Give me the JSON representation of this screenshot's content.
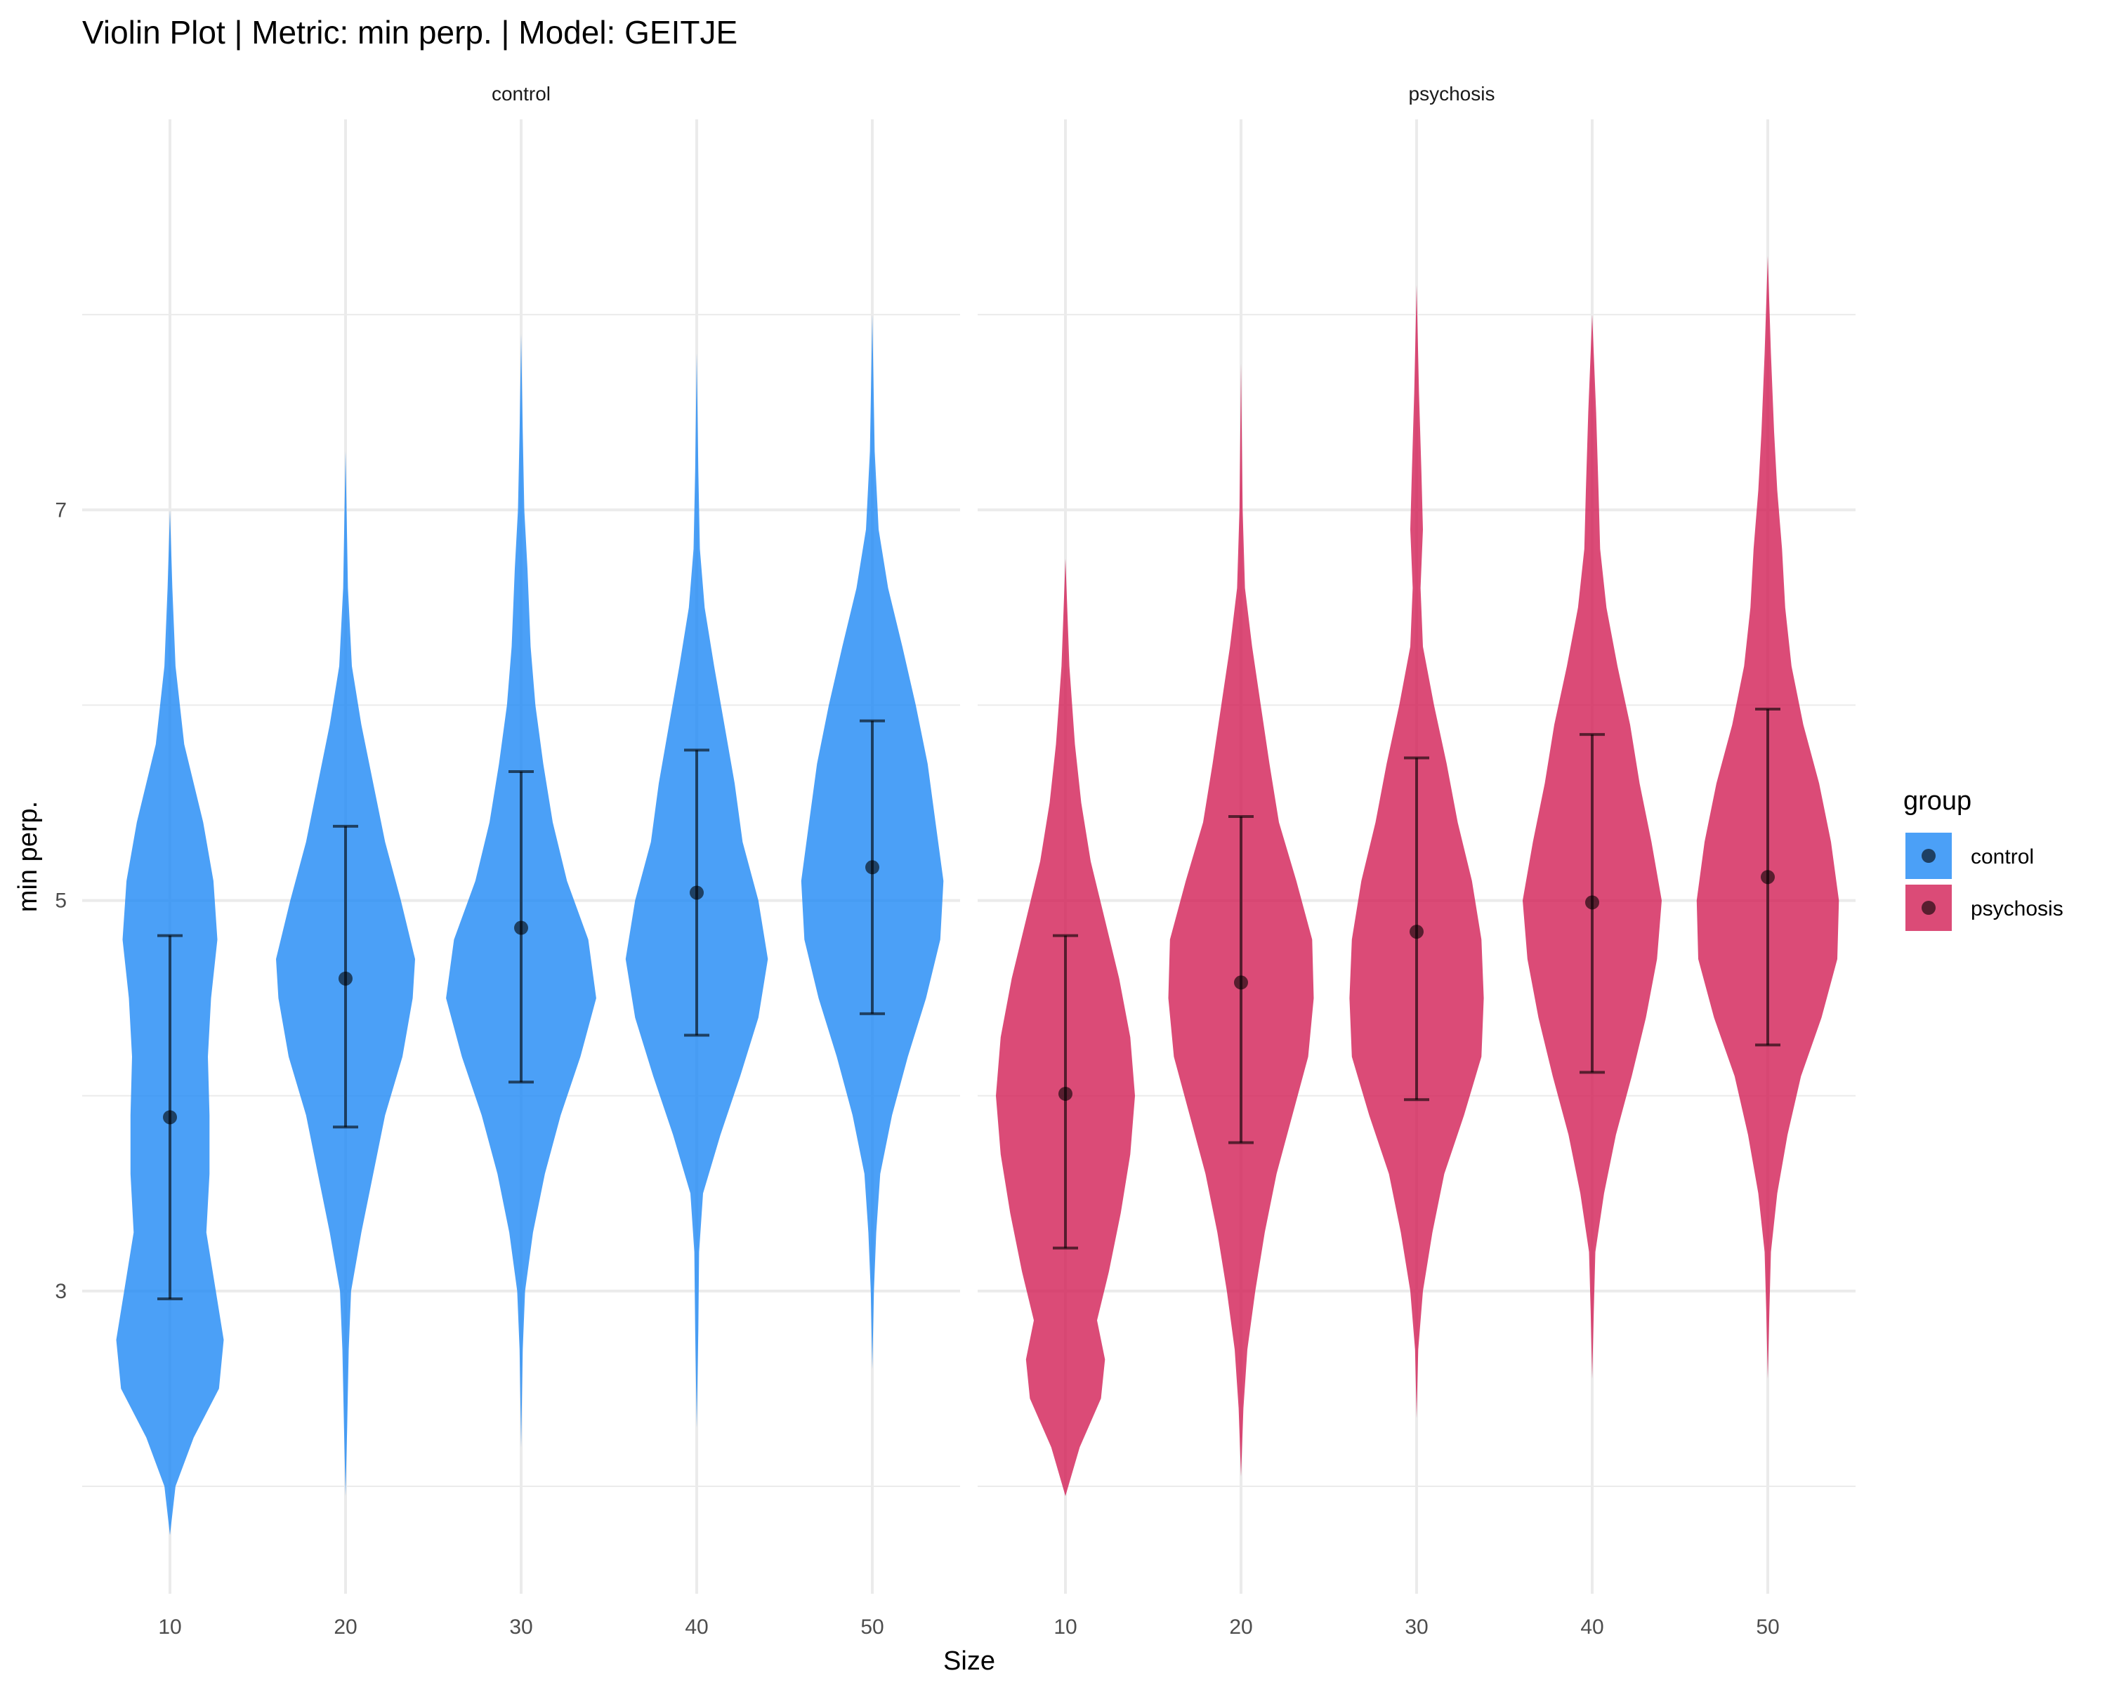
{
  "chart_data": {
    "type": "violin",
    "title": "Violin Plot | Metric: min perp. | Model: GEITJE",
    "xlabel": "Size",
    "ylabel": "min perp.",
    "ylim": [
      1.45,
      9.0
    ],
    "yticks": [
      3,
      5,
      7
    ],
    "categories": [
      "10",
      "20",
      "30",
      "40",
      "50"
    ],
    "grid": true,
    "legend": {
      "title": "group",
      "position": "right",
      "items": [
        {
          "label": "control",
          "color": "#1E88F5"
        },
        {
          "label": "psychosis",
          "color": "#D21E55"
        }
      ]
    },
    "panels": [
      {
        "name": "control",
        "color": "#1E88F5",
        "violins": [
          {
            "x": "10",
            "mean": 3.89,
            "lower": 2.96,
            "upper": 4.82,
            "min": 1.75,
            "max": 7.0,
            "profile": [
              [
                1.75,
                0
              ],
              [
                2.0,
                0.07
              ],
              [
                2.25,
                0.3
              ],
              [
                2.5,
                0.62
              ],
              [
                2.75,
                0.68
              ],
              [
                3.0,
                0.58
              ],
              [
                3.3,
                0.46
              ],
              [
                3.6,
                0.5
              ],
              [
                3.9,
                0.5
              ],
              [
                4.2,
                0.48
              ],
              [
                4.5,
                0.52
              ],
              [
                4.8,
                0.6
              ],
              [
                5.1,
                0.55
              ],
              [
                5.4,
                0.42
              ],
              [
                5.8,
                0.18
              ],
              [
                6.2,
                0.07
              ],
              [
                6.6,
                0.03
              ],
              [
                7.0,
                0
              ]
            ]
          },
          {
            "x": "20",
            "mean": 4.6,
            "lower": 3.84,
            "upper": 5.38,
            "min": 1.95,
            "max": 7.3,
            "profile": [
              [
                1.95,
                0
              ],
              [
                2.3,
                0.02
              ],
              [
                2.7,
                0.04
              ],
              [
                3.0,
                0.07
              ],
              [
                3.3,
                0.2
              ],
              [
                3.6,
                0.35
              ],
              [
                3.9,
                0.5
              ],
              [
                4.2,
                0.72
              ],
              [
                4.5,
                0.85
              ],
              [
                4.7,
                0.88
              ],
              [
                5.0,
                0.7
              ],
              [
                5.3,
                0.5
              ],
              [
                5.6,
                0.35
              ],
              [
                5.9,
                0.2
              ],
              [
                6.2,
                0.08
              ],
              [
                6.6,
                0.03
              ],
              [
                7.3,
                0
              ]
            ]
          },
          {
            "x": "30",
            "mean": 4.86,
            "lower": 4.07,
            "upper": 5.66,
            "min": 2.2,
            "max": 7.9,
            "profile": [
              [
                2.2,
                0
              ],
              [
                2.7,
                0.02
              ],
              [
                3.0,
                0.05
              ],
              [
                3.3,
                0.15
              ],
              [
                3.6,
                0.3
              ],
              [
                3.9,
                0.5
              ],
              [
                4.2,
                0.75
              ],
              [
                4.5,
                0.95
              ],
              [
                4.8,
                0.85
              ],
              [
                5.1,
                0.58
              ],
              [
                5.4,
                0.4
              ],
              [
                5.7,
                0.28
              ],
              [
                6.0,
                0.18
              ],
              [
                6.3,
                0.12
              ],
              [
                6.7,
                0.08
              ],
              [
                7.0,
                0.04
              ],
              [
                7.4,
                0.02
              ],
              [
                7.9,
                0
              ]
            ]
          },
          {
            "x": "40",
            "mean": 5.04,
            "lower": 4.31,
            "upper": 5.77,
            "min": 2.3,
            "max": 7.8,
            "profile": [
              [
                2.3,
                0
              ],
              [
                2.8,
                0.02
              ],
              [
                3.2,
                0.03
              ],
              [
                3.5,
                0.08
              ],
              [
                3.8,
                0.3
              ],
              [
                4.1,
                0.55
              ],
              [
                4.4,
                0.78
              ],
              [
                4.7,
                0.9
              ],
              [
                5.0,
                0.78
              ],
              [
                5.3,
                0.58
              ],
              [
                5.6,
                0.48
              ],
              [
                5.9,
                0.35
              ],
              [
                6.2,
                0.22
              ],
              [
                6.5,
                0.1
              ],
              [
                6.8,
                0.04
              ],
              [
                7.2,
                0.02
              ],
              [
                7.8,
                0
              ]
            ]
          },
          {
            "x": "50",
            "mean": 5.17,
            "lower": 4.42,
            "upper": 5.92,
            "min": 2.6,
            "max": 8.0,
            "profile": [
              [
                2.6,
                0
              ],
              [
                3.0,
                0.02
              ],
              [
                3.3,
                0.05
              ],
              [
                3.6,
                0.1
              ],
              [
                3.9,
                0.25
              ],
              [
                4.2,
                0.45
              ],
              [
                4.5,
                0.68
              ],
              [
                4.8,
                0.86
              ],
              [
                5.1,
                0.9
              ],
              [
                5.4,
                0.8
              ],
              [
                5.7,
                0.7
              ],
              [
                6.0,
                0.55
              ],
              [
                6.3,
                0.38
              ],
              [
                6.6,
                0.2
              ],
              [
                6.9,
                0.08
              ],
              [
                7.3,
                0.03
              ],
              [
                8.0,
                0
              ]
            ]
          }
        ]
      },
      {
        "name": "psychosis",
        "color": "#D21E55",
        "violins": [
          {
            "x": "10",
            "mean": 4.01,
            "lower": 3.22,
            "upper": 4.82,
            "min": 1.95,
            "max": 6.75,
            "profile": [
              [
                1.95,
                0
              ],
              [
                2.2,
                0.18
              ],
              [
                2.45,
                0.45
              ],
              [
                2.65,
                0.5
              ],
              [
                2.85,
                0.4
              ],
              [
                3.1,
                0.55
              ],
              [
                3.4,
                0.7
              ],
              [
                3.7,
                0.82
              ],
              [
                4.0,
                0.88
              ],
              [
                4.3,
                0.82
              ],
              [
                4.6,
                0.68
              ],
              [
                4.9,
                0.5
              ],
              [
                5.2,
                0.32
              ],
              [
                5.5,
                0.2
              ],
              [
                5.8,
                0.12
              ],
              [
                6.2,
                0.05
              ],
              [
                6.75,
                0
              ]
            ]
          },
          {
            "x": "20",
            "mean": 4.58,
            "lower": 3.76,
            "upper": 5.43,
            "min": 2.05,
            "max": 7.75,
            "profile": [
              [
                2.05,
                0
              ],
              [
                2.4,
                0.03
              ],
              [
                2.7,
                0.08
              ],
              [
                3.0,
                0.18
              ],
              [
                3.3,
                0.3
              ],
              [
                3.6,
                0.45
              ],
              [
                3.9,
                0.65
              ],
              [
                4.2,
                0.85
              ],
              [
                4.5,
                0.92
              ],
              [
                4.8,
                0.9
              ],
              [
                5.1,
                0.7
              ],
              [
                5.4,
                0.48
              ],
              [
                5.7,
                0.36
              ],
              [
                6.0,
                0.25
              ],
              [
                6.3,
                0.14
              ],
              [
                6.6,
                0.05
              ],
              [
                7.0,
                0.02
              ],
              [
                7.75,
                0
              ]
            ]
          },
          {
            "x": "30",
            "mean": 4.84,
            "lower": 3.98,
            "upper": 5.73,
            "min": 2.35,
            "max": 8.15,
            "profile": [
              [
                2.35,
                0
              ],
              [
                2.7,
                0.02
              ],
              [
                3.0,
                0.08
              ],
              [
                3.3,
                0.2
              ],
              [
                3.6,
                0.35
              ],
              [
                3.9,
                0.6
              ],
              [
                4.2,
                0.82
              ],
              [
                4.5,
                0.85
              ],
              [
                4.8,
                0.82
              ],
              [
                5.1,
                0.7
              ],
              [
                5.4,
                0.52
              ],
              [
                5.7,
                0.38
              ],
              [
                6.0,
                0.22
              ],
              [
                6.3,
                0.08
              ],
              [
                6.6,
                0.05
              ],
              [
                6.9,
                0.08
              ],
              [
                7.2,
                0.06
              ],
              [
                7.6,
                0.03
              ],
              [
                8.15,
                0
              ]
            ]
          },
          {
            "x": "40",
            "mean": 4.99,
            "lower": 4.12,
            "upper": 5.85,
            "min": 2.55,
            "max": 8.0,
            "profile": [
              [
                2.55,
                0
              ],
              [
                2.9,
                0.02
              ],
              [
                3.2,
                0.04
              ],
              [
                3.5,
                0.15
              ],
              [
                3.8,
                0.3
              ],
              [
                4.1,
                0.5
              ],
              [
                4.4,
                0.68
              ],
              [
                4.7,
                0.82
              ],
              [
                5.0,
                0.88
              ],
              [
                5.3,
                0.75
              ],
              [
                5.6,
                0.6
              ],
              [
                5.9,
                0.48
              ],
              [
                6.2,
                0.32
              ],
              [
                6.5,
                0.18
              ],
              [
                6.8,
                0.1
              ],
              [
                7.1,
                0.08
              ],
              [
                7.5,
                0.05
              ],
              [
                8.0,
                0
              ]
            ]
          },
          {
            "x": "50",
            "mean": 5.12,
            "lower": 4.26,
            "upper": 5.98,
            "min": 2.55,
            "max": 8.3,
            "profile": [
              [
                2.55,
                0
              ],
              [
                2.9,
                0.02
              ],
              [
                3.2,
                0.04
              ],
              [
                3.5,
                0.12
              ],
              [
                3.8,
                0.25
              ],
              [
                4.1,
                0.42
              ],
              [
                4.4,
                0.68
              ],
              [
                4.7,
                0.88
              ],
              [
                5.0,
                0.9
              ],
              [
                5.3,
                0.8
              ],
              [
                5.6,
                0.65
              ],
              [
                5.9,
                0.45
              ],
              [
                6.2,
                0.3
              ],
              [
                6.5,
                0.22
              ],
              [
                6.8,
                0.18
              ],
              [
                7.1,
                0.12
              ],
              [
                7.4,
                0.08
              ],
              [
                7.8,
                0.04
              ],
              [
                8.3,
                0
              ]
            ]
          }
        ]
      }
    ]
  }
}
